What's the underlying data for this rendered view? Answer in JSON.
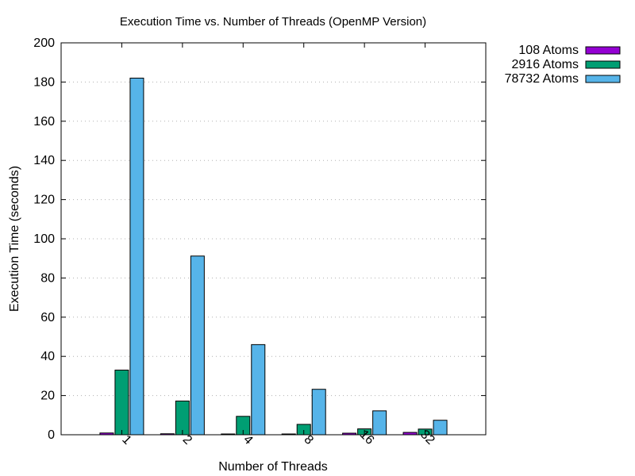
{
  "chart_data": {
    "type": "bar",
    "title": "Execution Time vs. Number of Threads (OpenMP Version)",
    "xlabel": "Number of Threads",
    "ylabel": "Execution Time (seconds)",
    "ylim": [
      0,
      200
    ],
    "yticks": [
      "0",
      "20",
      "40",
      "60",
      "80",
      "100",
      "120",
      "140",
      "160",
      "180",
      "200"
    ],
    "grid": true,
    "legend_position": "outside-top-right",
    "categories": [
      "1",
      "2",
      "4",
      "8",
      "16",
      "32"
    ],
    "series": [
      {
        "name": "108 Atoms",
        "color": "#9400d3",
        "values": [
          0.9,
          0.5,
          0.4,
          0.4,
          0.8,
          1.2
        ]
      },
      {
        "name": "2916 Atoms",
        "color": "#009e73",
        "values": [
          33,
          17.2,
          9.4,
          5.3,
          3.0,
          2.9
        ]
      },
      {
        "name": "78732 Atoms",
        "color": "#56b4e9",
        "values": [
          182,
          91.2,
          46,
          23.2,
          12.2,
          7.4
        ]
      }
    ]
  }
}
